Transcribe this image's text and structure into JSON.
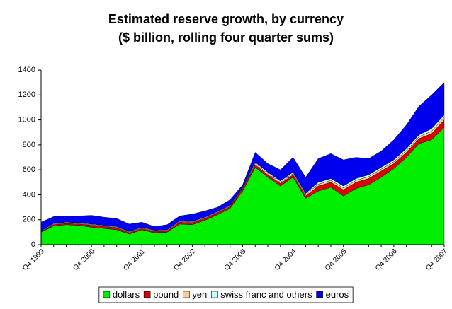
{
  "chart_data": {
    "type": "stacked_area",
    "title": "Estimated reserve growth, by currency",
    "subtitle": "($ billion, rolling four quarter sums)",
    "categories": [
      "Q4 1999",
      null,
      null,
      null,
      "Q4 2000",
      null,
      null,
      null,
      "Q4 2001",
      null,
      null,
      null,
      "Q4 2002",
      null,
      null,
      null,
      "Q4 2003",
      null,
      null,
      null,
      "Q4 2004",
      null,
      null,
      null,
      "Q4 2005",
      null,
      null,
      null,
      "Q4 2006",
      null,
      null,
      null,
      "Q4 2007"
    ],
    "series": [
      {
        "name": "dollars",
        "color": "#00ee00",
        "values": [
          100,
          150,
          160,
          155,
          140,
          130,
          120,
          85,
          120,
          95,
          100,
          165,
          160,
          195,
          240,
          290,
          430,
          620,
          540,
          470,
          540,
          370,
          430,
          460,
          390,
          450,
          480,
          540,
          610,
          700,
          810,
          840,
          940
        ]
      },
      {
        "name": "pound",
        "color": "#dd0000",
        "values": [
          5,
          10,
          10,
          10,
          15,
          15,
          15,
          10,
          10,
          10,
          10,
          15,
          15,
          15,
          15,
          15,
          20,
          20,
          20,
          20,
          20,
          20,
          40,
          40,
          50,
          50,
          50,
          50,
          40,
          40,
          40,
          50,
          60
        ]
      },
      {
        "name": "yen",
        "color": "#ffcc99",
        "values": [
          0,
          5,
          5,
          5,
          5,
          5,
          5,
          5,
          5,
          5,
          5,
          5,
          5,
          5,
          5,
          5,
          5,
          10,
          10,
          10,
          10,
          10,
          15,
          15,
          15,
          15,
          15,
          15,
          15,
          15,
          15,
          20,
          20
        ]
      },
      {
        "name": "swiss franc and others",
        "color": "#ccffff",
        "values": [
          5,
          5,
          5,
          5,
          5,
          5,
          5,
          5,
          5,
          5,
          5,
          5,
          5,
          5,
          5,
          5,
          5,
          10,
          10,
          10,
          10,
          10,
          15,
          15,
          15,
          15,
          15,
          15,
          15,
          15,
          15,
          20,
          20
        ]
      },
      {
        "name": "euros",
        "color": "#0000ee",
        "values": [
          70,
          55,
          50,
          55,
          70,
          65,
          65,
          60,
          40,
          30,
          40,
          40,
          60,
          50,
          35,
          45,
          20,
          80,
          70,
          90,
          120,
          130,
          190,
          200,
          210,
          170,
          130,
          130,
          160,
          190,
          230,
          270,
          260
        ]
      }
    ],
    "ylim": [
      0,
      1400
    ],
    "yticks": [
      0,
      200,
      400,
      600,
      800,
      1000,
      1200,
      1400
    ],
    "legend": "bottom"
  }
}
